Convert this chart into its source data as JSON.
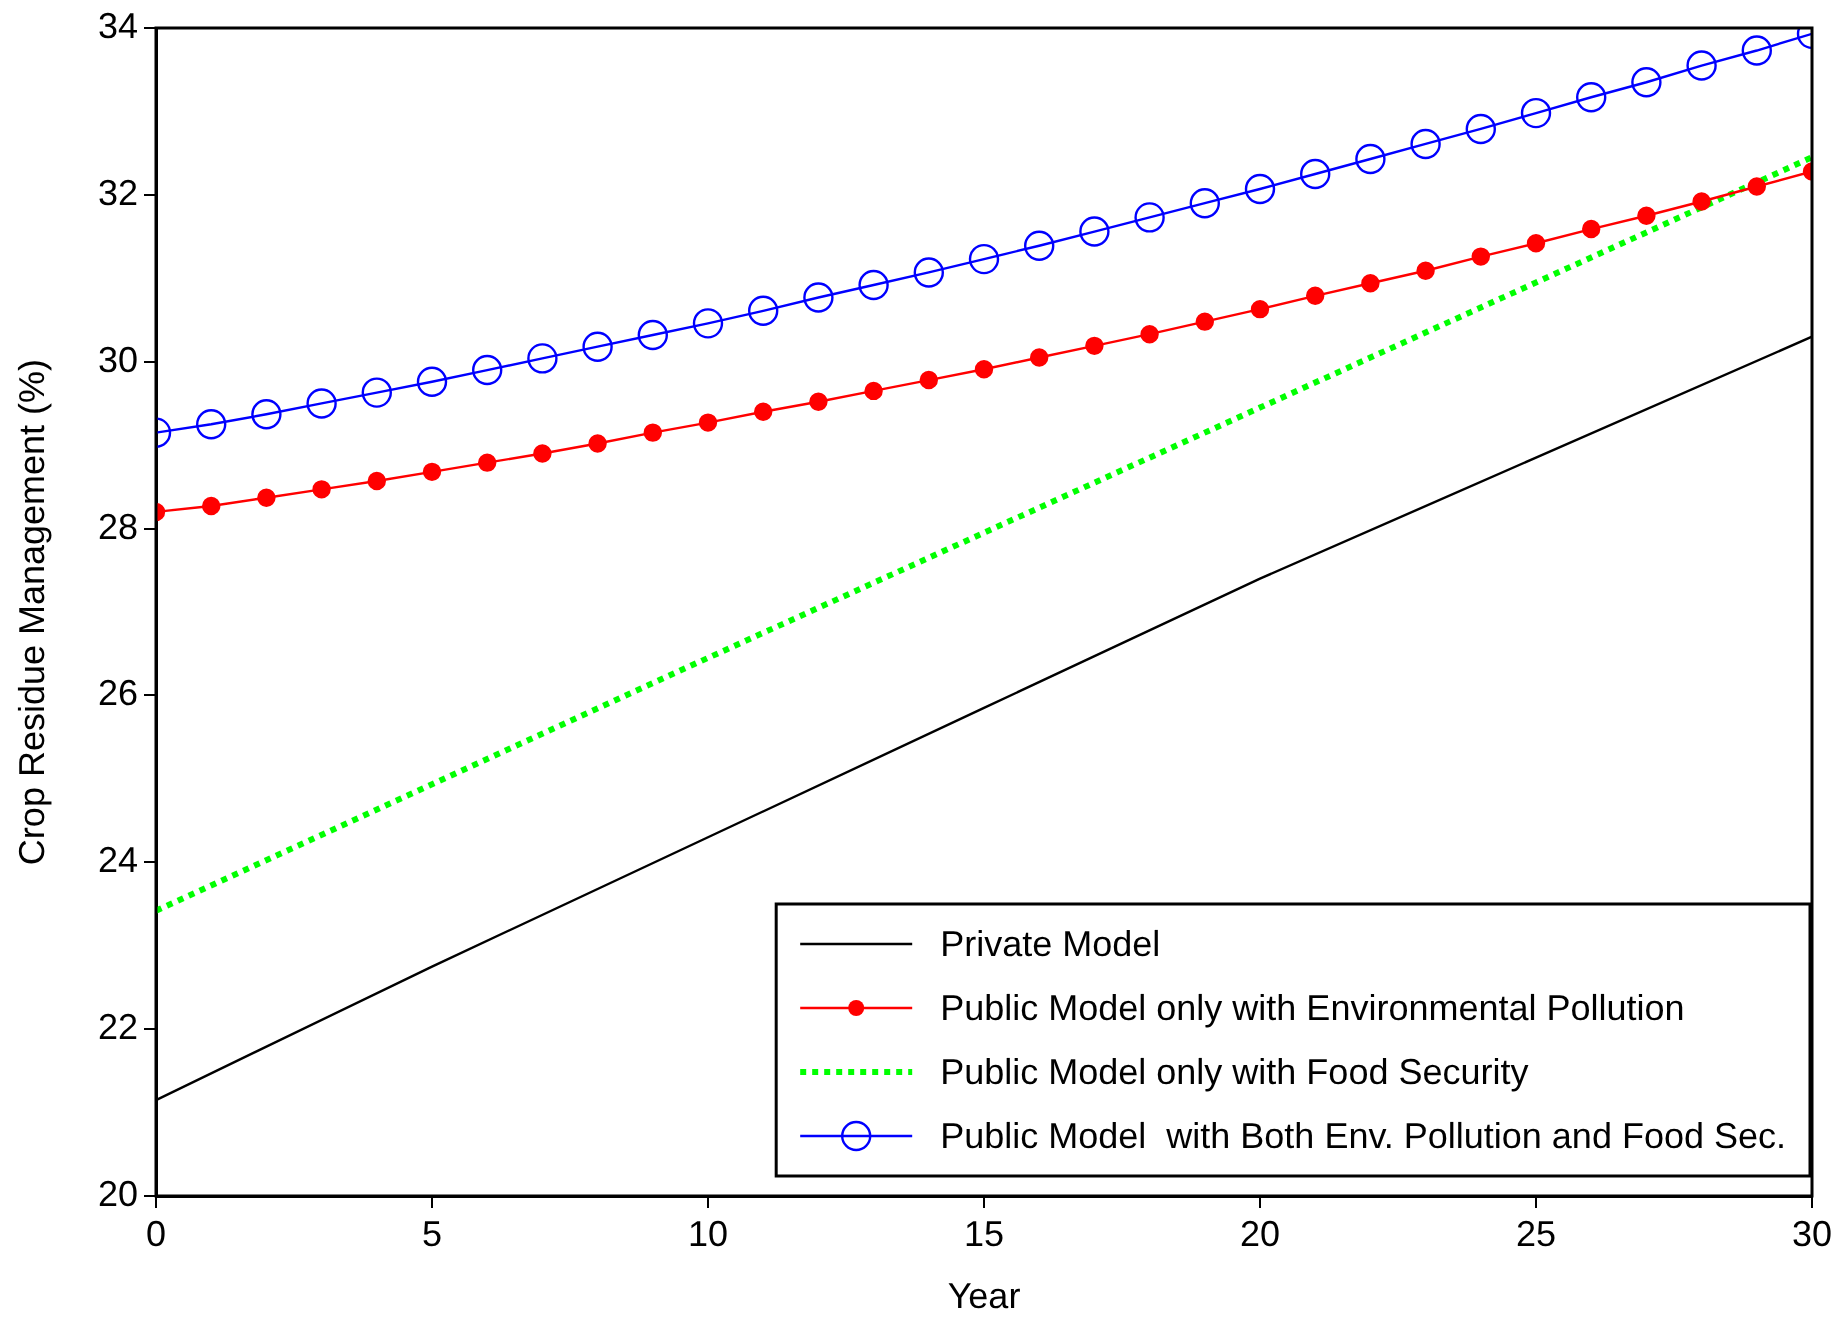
{
  "chart_data": {
    "type": "line",
    "xlabel": "Year",
    "ylabel": "Crop Residue Management (%)",
    "xlim": [
      0,
      30
    ],
    "xticks": [
      0,
      5,
      10,
      15,
      20,
      25,
      30
    ],
    "ylim": [
      20,
      34
    ],
    "yticks": [
      20,
      22,
      24,
      26,
      28,
      30,
      32,
      34
    ],
    "grid": false,
    "legend": "bottom right",
    "series": [
      {
        "name": "Private Model",
        "color": "#000000",
        "marker": "none",
        "line_style": "solid",
        "x": [
          0,
          5,
          10,
          15,
          20,
          25,
          30
        ],
        "values": [
          21.15,
          22.75,
          24.3,
          25.85,
          27.4,
          28.85,
          30.3
        ]
      },
      {
        "name": "Public Model only with Environmental Pollution",
        "color": "#ff0000",
        "marker": "circle",
        "line_style": "solid",
        "x": [
          0,
          1,
          2,
          3,
          4,
          5,
          6,
          7,
          8,
          9,
          10,
          11,
          12,
          13,
          14,
          15,
          16,
          17,
          18,
          19,
          20,
          21,
          22,
          23,
          24,
          25,
          26,
          27,
          28,
          29,
          30
        ],
        "values": [
          28.2,
          28.27,
          28.37,
          28.47,
          28.57,
          28.68,
          28.79,
          28.9,
          29.02,
          29.15,
          29.27,
          29.4,
          29.52,
          29.65,
          29.78,
          29.91,
          30.05,
          30.19,
          30.33,
          30.48,
          30.63,
          30.79,
          30.94,
          31.09,
          31.26,
          31.42,
          31.59,
          31.75,
          31.92,
          32.1,
          32.28
        ]
      },
      {
        "name": "Public Model only with Food Security",
        "color": "#00ff00",
        "marker": "none",
        "line_style": "dotted",
        "x": [
          0,
          10,
          20,
          30
        ],
        "values": [
          23.42,
          26.45,
          29.45,
          32.45
        ]
      },
      {
        "name": "Public Model  with Both Env. Pollution and Food Sec.",
        "color": "#0000ff",
        "marker": "circle",
        "line_style": "solid",
        "x": [
          0,
          1,
          2,
          3,
          4,
          5,
          6,
          7,
          8,
          9,
          10,
          11,
          12,
          13,
          14,
          15,
          16,
          17,
          18,
          19,
          20,
          21,
          22,
          23,
          24,
          25,
          26,
          27,
          28,
          29,
          30
        ],
        "values": [
          29.15,
          29.25,
          29.37,
          29.5,
          29.63,
          29.76,
          29.9,
          30.04,
          30.18,
          30.32,
          30.46,
          30.61,
          30.77,
          30.92,
          31.07,
          31.23,
          31.39,
          31.56,
          31.73,
          31.9,
          32.07,
          32.25,
          32.43,
          32.61,
          32.79,
          32.98,
          33.17,
          33.35,
          33.55,
          33.73,
          33.93
        ]
      }
    ]
  }
}
